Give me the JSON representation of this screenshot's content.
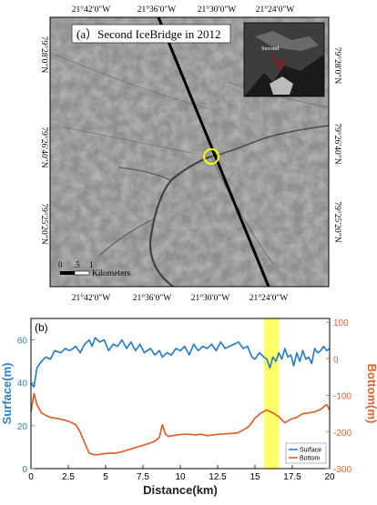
{
  "figure": {
    "panel_a": {
      "title": "(a）Second IceBridge in 2012",
      "top_lon_ticks": [
        "21°42′0″W",
        "21°36′0″W",
        "21°30′0″W",
        "21°24′0″W"
      ],
      "bottom_lon_ticks": [
        "21°42′0″W",
        "21°36′0″W",
        "21°30′0″W",
        "21°24′0″W"
      ],
      "left_lat_ticks": [
        "79°28′0″N",
        "79°26′40″N",
        "79°25′20″N"
      ],
      "right_lat_ticks": [
        "79°28′0″N",
        "79°26′40″N",
        "79°25′20″N"
      ],
      "scale_ticks": [
        "0",
        ".5",
        "1"
      ],
      "scale_unit": "Kilometers",
      "inset_label": "Second"
    }
  },
  "chart_data": {
    "type": "line",
    "panel_label": "(b)",
    "xlabel": "Distance(km)",
    "ylabel_left": "Surface(m)",
    "ylabel_right": "Bottom(m)",
    "xlim": [
      0,
      20
    ],
    "ylim_left": [
      0,
      70
    ],
    "ylim_right": [
      -300,
      110
    ],
    "x_ticks": [
      "0",
      "2.5",
      "5",
      "7.5",
      "10",
      "12.5",
      "15",
      "17.5",
      "20"
    ],
    "left_ticks": [
      "0",
      "20",
      "40",
      "60"
    ],
    "right_ticks": [
      "-300",
      "-200",
      "-100",
      "0",
      "100"
    ],
    "highlight_x": [
      15.6,
      16.6
    ],
    "legend": [
      "Surface",
      "Bottom"
    ],
    "colors": {
      "surface": "#2e7fc0",
      "bottom": "#d9632b",
      "highlight": "#ffff66",
      "left_axis": "#2e7fc0",
      "right_axis": "#d9632b"
    },
    "series": [
      {
        "name": "Surface",
        "axis": "left",
        "x": [
          0,
          0.2,
          0.4,
          0.7,
          1,
          1.3,
          1.6,
          2,
          2.3,
          2.6,
          3,
          3.3,
          3.6,
          3.9,
          4.1,
          4.3,
          4.6,
          4.9,
          5.2,
          5.5,
          5.8,
          6.1,
          6.4,
          6.7,
          7,
          7.3,
          7.6,
          8,
          8.3,
          8.6,
          8.8,
          9.1,
          9.4,
          9.7,
          10,
          10.3,
          10.6,
          10.9,
          11.2,
          11.5,
          11.8,
          12.1,
          12.4,
          12.7,
          13,
          13.3,
          13.6,
          13.9,
          14.2,
          14.5,
          14.8,
          15,
          15.3,
          15.6,
          15.8,
          16,
          16.2,
          16.4,
          16.6,
          16.8,
          17,
          17.2,
          17.4,
          17.6,
          17.8,
          18,
          18.2,
          18.4,
          18.6,
          18.8,
          19,
          19.2,
          19.4,
          19.6,
          19.8,
          20
        ],
        "values": [
          40,
          38,
          47,
          50,
          52,
          51,
          55,
          54,
          56,
          55,
          57,
          54,
          58,
          60,
          57,
          61,
          59,
          60,
          55,
          58,
          57,
          60,
          56,
          59,
          55,
          58,
          54,
          56,
          53,
          55,
          52,
          54,
          53,
          56,
          55,
          57,
          53,
          58,
          55,
          57,
          56,
          58,
          55,
          59,
          56,
          57,
          58,
          59,
          56,
          57,
          52,
          51,
          54,
          52,
          51,
          47,
          52,
          50,
          54,
          51,
          56,
          52,
          53,
          48,
          54,
          50,
          55,
          51,
          52,
          49,
          56,
          54,
          55,
          57,
          55,
          56
        ]
      },
      {
        "name": "Bottom",
        "axis": "right",
        "x": [
          0,
          0.2,
          0.4,
          0.7,
          1,
          1.3,
          1.6,
          2,
          2.3,
          2.6,
          3,
          3.3,
          3.6,
          3.9,
          4.2,
          4.5,
          4.8,
          5.2,
          5.6,
          6,
          6.4,
          6.8,
          7.2,
          7.6,
          8,
          8.3,
          8.6,
          8.8,
          9,
          9.2,
          9.5,
          9.8,
          10.2,
          10.6,
          11,
          11.4,
          11.8,
          12.2,
          12.6,
          13,
          13.4,
          13.8,
          14.2,
          14.6,
          15,
          15.4,
          15.8,
          16.2,
          16.6,
          17,
          17.4,
          17.8,
          18.2,
          18.6,
          19,
          19.4,
          19.8,
          20
        ],
        "values": [
          -145,
          -95,
          -125,
          -148,
          -155,
          -160,
          -162,
          -165,
          -168,
          -172,
          -180,
          -200,
          -230,
          -258,
          -262,
          -262,
          -260,
          -258,
          -258,
          -255,
          -250,
          -245,
          -240,
          -235,
          -230,
          -225,
          -215,
          -180,
          -205,
          -212,
          -210,
          -208,
          -206,
          -206,
          -208,
          -206,
          -210,
          -208,
          -206,
          -205,
          -204,
          -203,
          -195,
          -185,
          -162,
          -148,
          -140,
          -148,
          -158,
          -175,
          -165,
          -160,
          -150,
          -148,
          -145,
          -138,
          -125,
          -140
        ]
      }
    ]
  }
}
